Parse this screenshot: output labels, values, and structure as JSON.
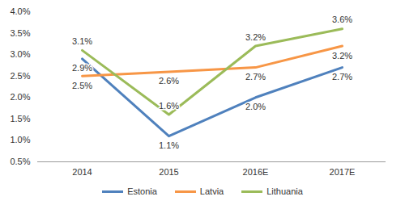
{
  "chart_data": {
    "type": "line",
    "categories": [
      "2014",
      "2015",
      "2016E",
      "2017E"
    ],
    "series": [
      {
        "name": "Estonia",
        "color": "#4f81bd",
        "values": [
          2.9,
          1.1,
          2.0,
          2.7
        ],
        "value_labels": [
          "2.9%",
          "1.1%",
          "2.0%",
          "2.7%"
        ]
      },
      {
        "name": "Latvia",
        "color": "#f79646",
        "values": [
          2.5,
          2.6,
          2.7,
          3.2
        ],
        "value_labels": [
          "2.5%",
          "2.6%",
          "2.7%",
          "3.2%"
        ]
      },
      {
        "name": "Lithuania",
        "color": "#9bbb59",
        "values": [
          3.1,
          1.6,
          3.2,
          3.6
        ],
        "value_labels": [
          "3.1%",
          "1.6%",
          "3.2%",
          "3.6%"
        ]
      }
    ],
    "ylim": [
      0.5,
      4.0
    ],
    "yticks": [
      {
        "value": 0.5,
        "label": "0.5%"
      },
      {
        "value": 1.0,
        "label": "1.0%"
      },
      {
        "value": 1.5,
        "label": "1.5%"
      },
      {
        "value": 2.0,
        "label": "2.0%"
      },
      {
        "value": 2.5,
        "label": "2.5%"
      },
      {
        "value": 3.0,
        "label": "3.0%"
      },
      {
        "value": 3.5,
        "label": "3.5%"
      },
      {
        "value": 4.0,
        "label": "4.0%"
      }
    ],
    "grid": false,
    "data_labels": true,
    "legend": "bottom"
  }
}
